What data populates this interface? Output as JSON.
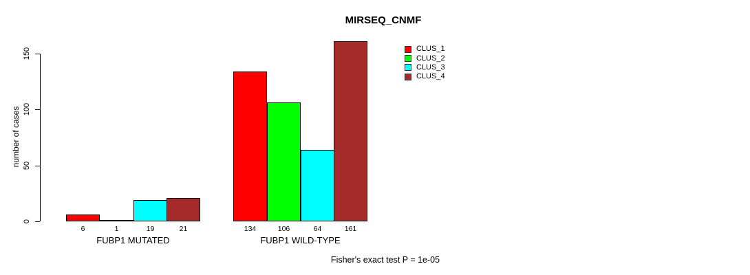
{
  "title": "MIRSEQ_CNMF",
  "chart_data": {
    "type": "bar",
    "title": "MIRSEQ_CNMF",
    "xlabel": "",
    "ylabel": "number of cases",
    "categories": [
      "FUBP1 MUTATED",
      "FUBP1 WILD-TYPE"
    ],
    "series": [
      {
        "name": "CLUS_1",
        "color": "#ff0000",
        "values": [
          6,
          134
        ]
      },
      {
        "name": "CLUS_2",
        "color": "#00ff00",
        "values": [
          1,
          106
        ]
      },
      {
        "name": "CLUS_3",
        "color": "#00ffff",
        "values": [
          19,
          64
        ]
      },
      {
        "name": "CLUS_4",
        "color": "#a52a2a",
        "values": [
          21,
          161
        ]
      }
    ],
    "bar_value_labels": [
      [
        6,
        1,
        19,
        21
      ],
      [
        134,
        106,
        64,
        161
      ]
    ],
    "yticks": [
      0,
      50,
      100,
      150
    ],
    "ylim": [
      0,
      165
    ],
    "grid": false,
    "legend_position": "top-right",
    "legend_entries": [
      "CLUS_1",
      "CLUS_2",
      "CLUS_3",
      "CLUS_4"
    ],
    "annotation": "Fisher's exact test P = 1e-05"
  },
  "colors": {
    "background": "#ffffff",
    "axis": "#000000",
    "text": "#000000",
    "clus_1": "#ff0000",
    "clus_2": "#00ff00",
    "clus_3": "#00ffff",
    "clus_4": "#a52a2a"
  }
}
